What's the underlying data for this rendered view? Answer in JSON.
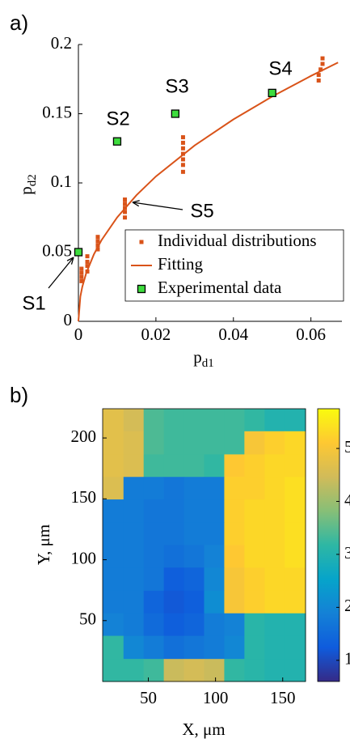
{
  "chart_data": [
    {
      "type": "scatter",
      "panel_label": "a)",
      "x_label": {
        "text": "p",
        "sub": "d1"
      },
      "y_label": {
        "text": "p",
        "sub": "d2"
      },
      "xlim": [
        0,
        0.068
      ],
      "ylim": [
        0,
        0.2
      ],
      "xticks": [
        0,
        0.02,
        0.04,
        0.06
      ],
      "yticks": [
        0,
        0.05,
        0.1,
        0.15,
        0.2
      ],
      "legend": "lower right",
      "series": [
        {
          "name": "Individual distributions",
          "color": "#d95319",
          "mode": "markers",
          "x": [
            0.0008,
            0.0008,
            0.0008,
            0.0008,
            0.0023,
            0.0023,
            0.0023,
            0.0023,
            0.005,
            0.005,
            0.005,
            0.005,
            0.012,
            0.012,
            0.012,
            0.012,
            0.012,
            0.027,
            0.027,
            0.027,
            0.027,
            0.027,
            0.027,
            0.027,
            0.062,
            0.062,
            0.0625,
            0.063,
            0.063
          ],
          "values": [
            0.029,
            0.032,
            0.035,
            0.038,
            0.036,
            0.04,
            0.043,
            0.047,
            0.052,
            0.055,
            0.058,
            0.061,
            0.075,
            0.079,
            0.082,
            0.085,
            0.088,
            0.108,
            0.113,
            0.117,
            0.121,
            0.125,
            0.129,
            0.133,
            0.174,
            0.178,
            0.182,
            0.186,
            0.19
          ]
        },
        {
          "name": "Fitting",
          "color": "#d95319",
          "mode": "line",
          "x": [
            0,
            0.0005,
            0.001,
            0.002,
            0.004,
            0.006,
            0.01,
            0.015,
            0.02,
            0.03,
            0.04,
            0.05,
            0.06,
            0.067
          ],
          "values": [
            0,
            0.0179,
            0.0249,
            0.0347,
            0.0484,
            0.0588,
            0.0751,
            0.0912,
            0.1047,
            0.1271,
            0.1459,
            0.1624,
            0.1773,
            0.187
          ]
        },
        {
          "name": "Experimental data",
          "color": "#3ddc3d",
          "mode": "markers-outlined",
          "x": [
            0,
            0.01,
            0.025,
            0.05
          ],
          "values": [
            0.05,
            0.13,
            0.15,
            0.165
          ]
        }
      ],
      "annotations": [
        "S1",
        "S2",
        "S3",
        "S4",
        "S5"
      ]
    },
    {
      "type": "heatmap",
      "panel_label": "b)",
      "x_label": "X, μm",
      "y_label": "Y, μm",
      "xlim": [
        16,
        167
      ],
      "ylim": [
        0,
        224
      ],
      "xticks": [
        50,
        100,
        150
      ],
      "yticks": [
        50,
        100,
        150,
        200
      ],
      "x": [
        24,
        39,
        54,
        69,
        84,
        99,
        114,
        129,
        144,
        159
      ],
      "y": [
        215,
        196,
        177,
        159,
        140,
        121,
        103,
        84,
        65,
        47,
        28,
        9
      ],
      "z": [
        [
          4.7,
          4.5,
          3.4,
          3.3,
          3.3,
          3.3,
          3.3,
          3.2,
          3.0,
          3.0
        ],
        [
          4.7,
          4.6,
          3.4,
          3.3,
          3.3,
          3.3,
          3.3,
          5.0,
          5.2,
          5.3
        ],
        [
          4.7,
          4.6,
          3.3,
          3.3,
          3.3,
          3.2,
          5.1,
          5.2,
          5.3,
          5.3
        ],
        [
          4.6,
          1.8,
          1.8,
          1.7,
          1.8,
          1.8,
          5.2,
          5.2,
          5.3,
          5.4
        ],
        [
          1.8,
          1.8,
          1.7,
          1.7,
          1.8,
          1.8,
          5.2,
          5.3,
          5.3,
          5.4
        ],
        [
          1.8,
          1.8,
          1.7,
          1.7,
          1.8,
          1.8,
          5.2,
          5.3,
          5.3,
          5.4
        ],
        [
          1.8,
          1.8,
          1.7,
          1.6,
          1.7,
          1.9,
          5.1,
          5.3,
          5.3,
          5.4
        ],
        [
          1.8,
          1.8,
          1.7,
          1.3,
          1.4,
          2.0,
          5.0,
          5.2,
          5.3,
          5.3
        ],
        [
          1.8,
          1.8,
          1.4,
          1.2,
          1.3,
          2.1,
          5.0,
          5.2,
          5.3,
          5.3
        ],
        [
          1.9,
          1.8,
          1.5,
          1.3,
          1.4,
          1.8,
          1.9,
          3.1,
          3.0,
          3.0
        ],
        [
          3.2,
          2.0,
          1.8,
          1.6,
          1.7,
          1.8,
          2.0,
          3.1,
          3.0,
          3.0
        ],
        [
          3.2,
          3.2,
          3.3,
          4.4,
          4.5,
          4.4,
          3.2,
          3.1,
          3.0,
          3.0
        ]
      ],
      "clim": [
        0.6,
        5.75
      ],
      "colorbar_ticks": [
        1,
        2,
        3,
        4,
        5
      ],
      "colormap_colors": [
        "#352a87",
        "#0f5cdd",
        "#1481d6",
        "#06a4ca",
        "#2eb7a4",
        "#87bf77",
        "#d1bb59",
        "#fec832",
        "#f9fb0e"
      ]
    }
  ]
}
